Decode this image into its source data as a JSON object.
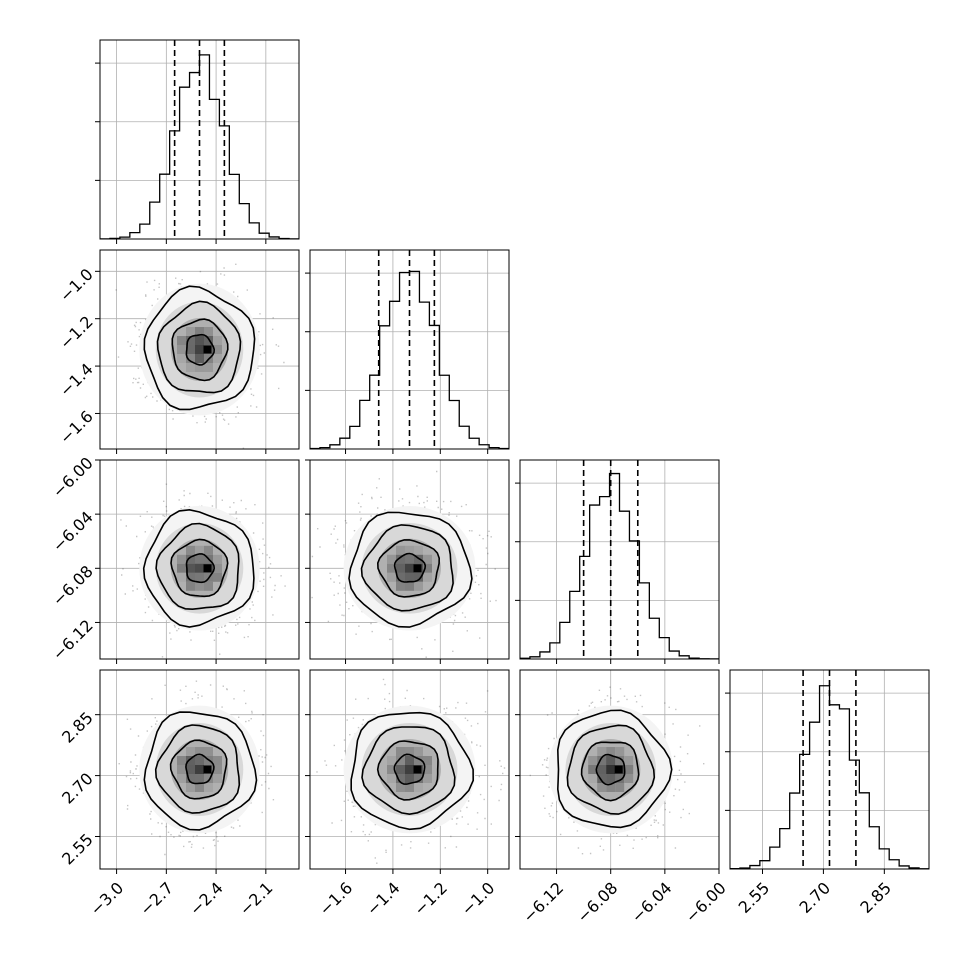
{
  "chart_data": {
    "type": "corner",
    "parameters": [
      {
        "range": [
          -3.1,
          -1.9
        ],
        "ticks": [
          -3.0,
          -2.7,
          -2.4,
          -2.1
        ],
        "tick_labels": [
          "−3.0",
          "−2.7",
          "−2.4",
          "−2.1"
        ],
        "median": -2.5,
        "q16": -2.65,
        "q84": -2.35,
        "sigma": 0.15,
        "hist_ymax": 1000
      },
      {
        "range": [
          -1.75,
          -0.91
        ],
        "ticks": [
          -1.6,
          -1.4,
          -1.2,
          -1.0
        ],
        "tick_labels": [
          "−1.6",
          "−1.4",
          "−1.2",
          "−1.0"
        ],
        "median": -1.33,
        "q16": -1.46,
        "q84": -1.225,
        "sigma": 0.115,
        "hist_ymax": 1000
      },
      {
        "range": [
          -6.147,
          -6.0
        ],
        "ticks": [
          -6.12,
          -6.08,
          -6.04,
          -6.0
        ],
        "tick_labels": [
          "−6.12",
          "−6.08",
          "−6.04",
          "−6.00"
        ],
        "median": -6.08,
        "q16": -6.1,
        "q84": -6.06,
        "sigma": 0.019,
        "hist_ymax": 1000
      },
      {
        "range": [
          2.47,
          2.96
        ],
        "ticks": [
          2.55,
          2.7,
          2.85
        ],
        "tick_labels": [
          "2.55",
          "2.70",
          "2.85"
        ],
        "median": 2.715,
        "q16": 2.65,
        "q84": 2.78,
        "sigma": 0.065,
        "hist_ymax": 1000
      }
    ],
    "histogram_bins": 20,
    "quantiles": [
      0.16,
      0.5,
      0.84
    ],
    "contour_levels_sigma": [
      0.5,
      1.0,
      1.5,
      2.0
    ],
    "scatter_color": "#555555",
    "line_color": "#000000",
    "grid": true,
    "xlabel": "",
    "ylabel": "",
    "title": ""
  }
}
